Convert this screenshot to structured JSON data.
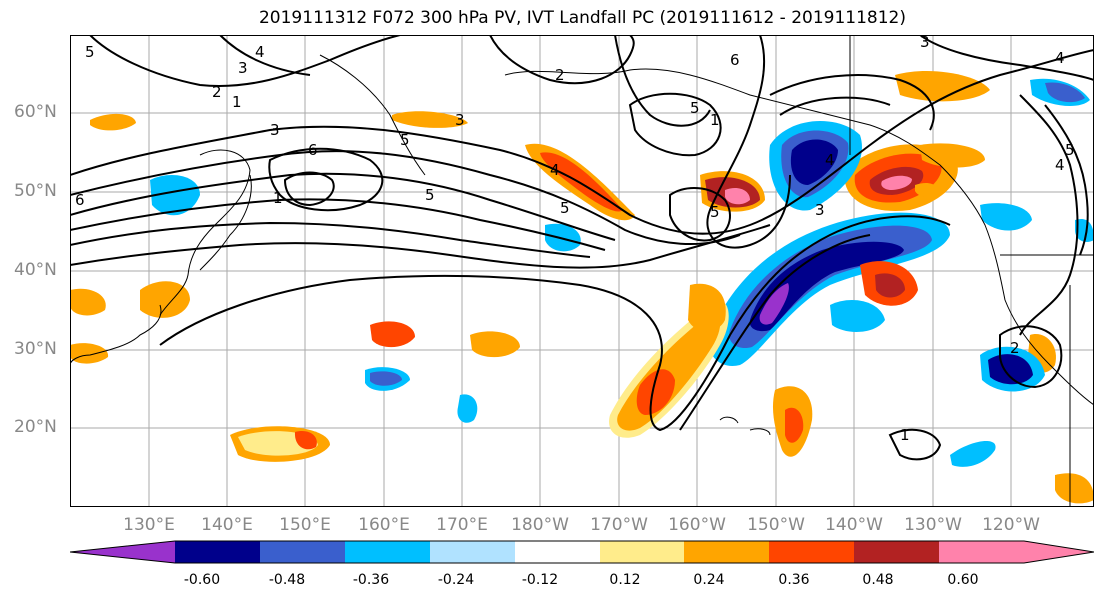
{
  "title": "2019111312 F072 300 hPa PV, IVT Landfall PC (2019111612 - 2019111812)",
  "map": {
    "lat_labels": [
      "60°N",
      "50°N",
      "40°N",
      "30°N",
      "20°N"
    ],
    "lon_labels": [
      "130°E",
      "140°E",
      "150°E",
      "160°E",
      "170°E",
      "180°W",
      "170°W",
      "160°W",
      "150°W",
      "140°W",
      "130°W",
      "120°W"
    ],
    "contour_labels": [
      "5",
      "4",
      "3",
      "2",
      "1",
      "3",
      "6",
      "5",
      "1",
      "5",
      "6",
      "5",
      "2",
      "4",
      "3",
      "6",
      "1",
      "5",
      "5",
      "4",
      "3",
      "4",
      "5",
      "4",
      "3",
      "2",
      "1"
    ]
  },
  "colorbar": {
    "levels": [
      "-0.60",
      "-0.48",
      "-0.36",
      "-0.24",
      "-0.12",
      "0.12",
      "0.24",
      "0.36",
      "0.48",
      "0.60"
    ],
    "colors": [
      "#9932cc",
      "#00008b",
      "#3a5fcd",
      "#00bfff",
      "#b0e2ff",
      "#ffffff",
      "#ffec8b",
      "#ffa500",
      "#ff4500",
      "#b22222",
      "#ff82ab"
    ]
  }
}
